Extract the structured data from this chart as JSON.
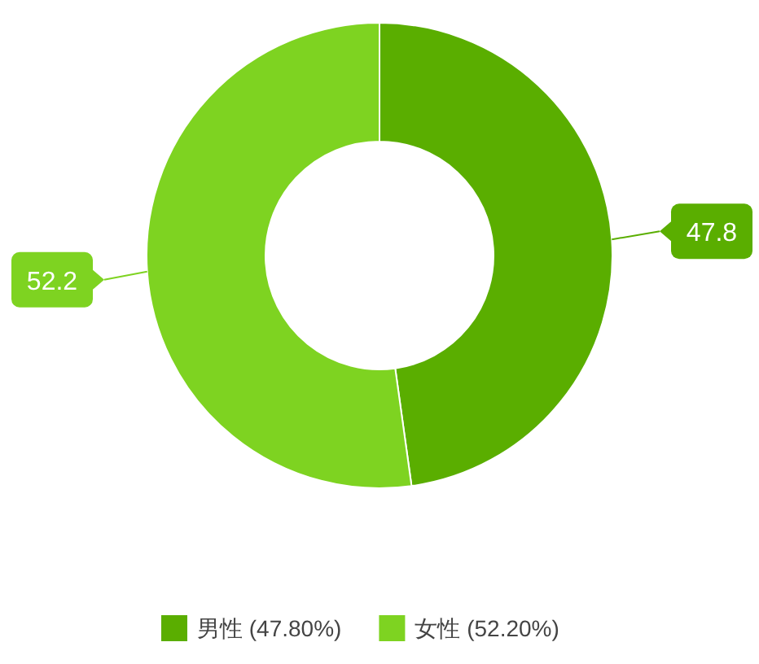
{
  "chart_data": {
    "type": "donut",
    "categories": [
      "男性 (47.80%)",
      "女性 (52.20%)"
    ],
    "values": [
      47.8,
      52.2
    ],
    "colors": [
      "#5aae00",
      "#7ed321"
    ],
    "data_labels": true,
    "legend": "bottom"
  }
}
